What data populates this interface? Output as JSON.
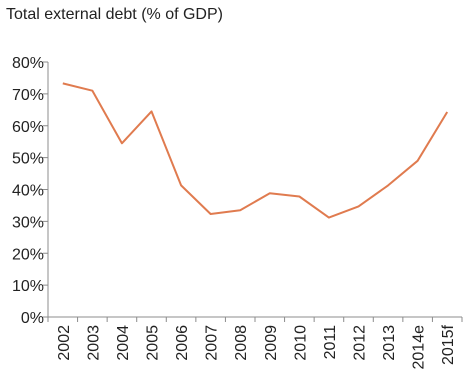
{
  "chart_data": {
    "type": "line",
    "title": "Total external debt (% of GDP)",
    "xlabel": "",
    "ylabel": "",
    "categories": [
      "2002",
      "2003",
      "2004",
      "2005",
      "2006",
      "2007",
      "2008",
      "2009",
      "2010",
      "2011",
      "2012",
      "2013",
      "2014e",
      "2015f"
    ],
    "series": [
      {
        "values": [
          73.3,
          71.0,
          54.5,
          64.5,
          41.3,
          32.3,
          33.5,
          38.8,
          37.8,
          31.2,
          34.7,
          41.3,
          49.0,
          64.3
        ]
      }
    ],
    "yticks": [
      "0%",
      "10%",
      "20%",
      "30%",
      "40%",
      "50%",
      "60%",
      "70%",
      "80%"
    ],
    "ylim": [
      0,
      80
    ],
    "grid": false,
    "line_color": "#E07B4F",
    "axis_color": "#8C8C8C"
  }
}
